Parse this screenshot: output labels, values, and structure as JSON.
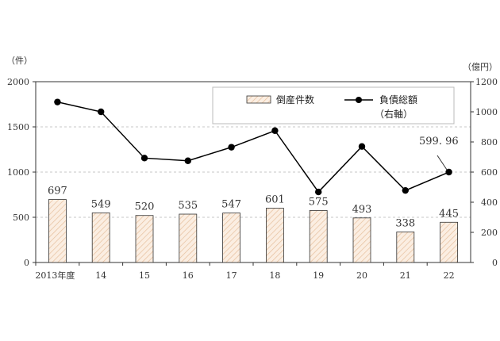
{
  "chart_data": {
    "type": "bar",
    "categories": [
      "2013年度",
      "14",
      "15",
      "16",
      "17",
      "18",
      "19",
      "20",
      "21",
      "22"
    ],
    "series": [
      {
        "name": "倒産件数",
        "type": "bar",
        "axis": "left",
        "values": [
          697,
          549,
          520,
          535,
          547,
          601,
          575,
          493,
          338,
          445
        ],
        "labels": [
          "697",
          "549",
          "520",
          "535",
          "547",
          "601",
          "575",
          "493",
          "338",
          "445"
        ],
        "color": "#f7e7d8"
      },
      {
        "name": "負債総額",
        "type": "line",
        "axis": "right",
        "values": [
          1065,
          1000,
          693,
          675,
          765,
          875,
          468,
          770,
          478,
          599.96
        ],
        "color": "#000000"
      }
    ],
    "left_axis": {
      "unit": "（件）",
      "ticks": [
        "0",
        "500",
        "1000",
        "1500",
        "2000"
      ],
      "ylim": [
        0,
        2000
      ]
    },
    "right_axis": {
      "unit": "（億円）",
      "ticks": [
        "0",
        "200",
        "400",
        "600",
        "800",
        "1000",
        "1200"
      ],
      "ylim": [
        0,
        1200
      ]
    },
    "annotation": "599. 96",
    "legend": {
      "bar_label": "倒産件数",
      "line_label": "負債総額",
      "line_sublabel": "（右軸）",
      "placement": "top-right"
    },
    "grid": "horizontal dashed"
  }
}
